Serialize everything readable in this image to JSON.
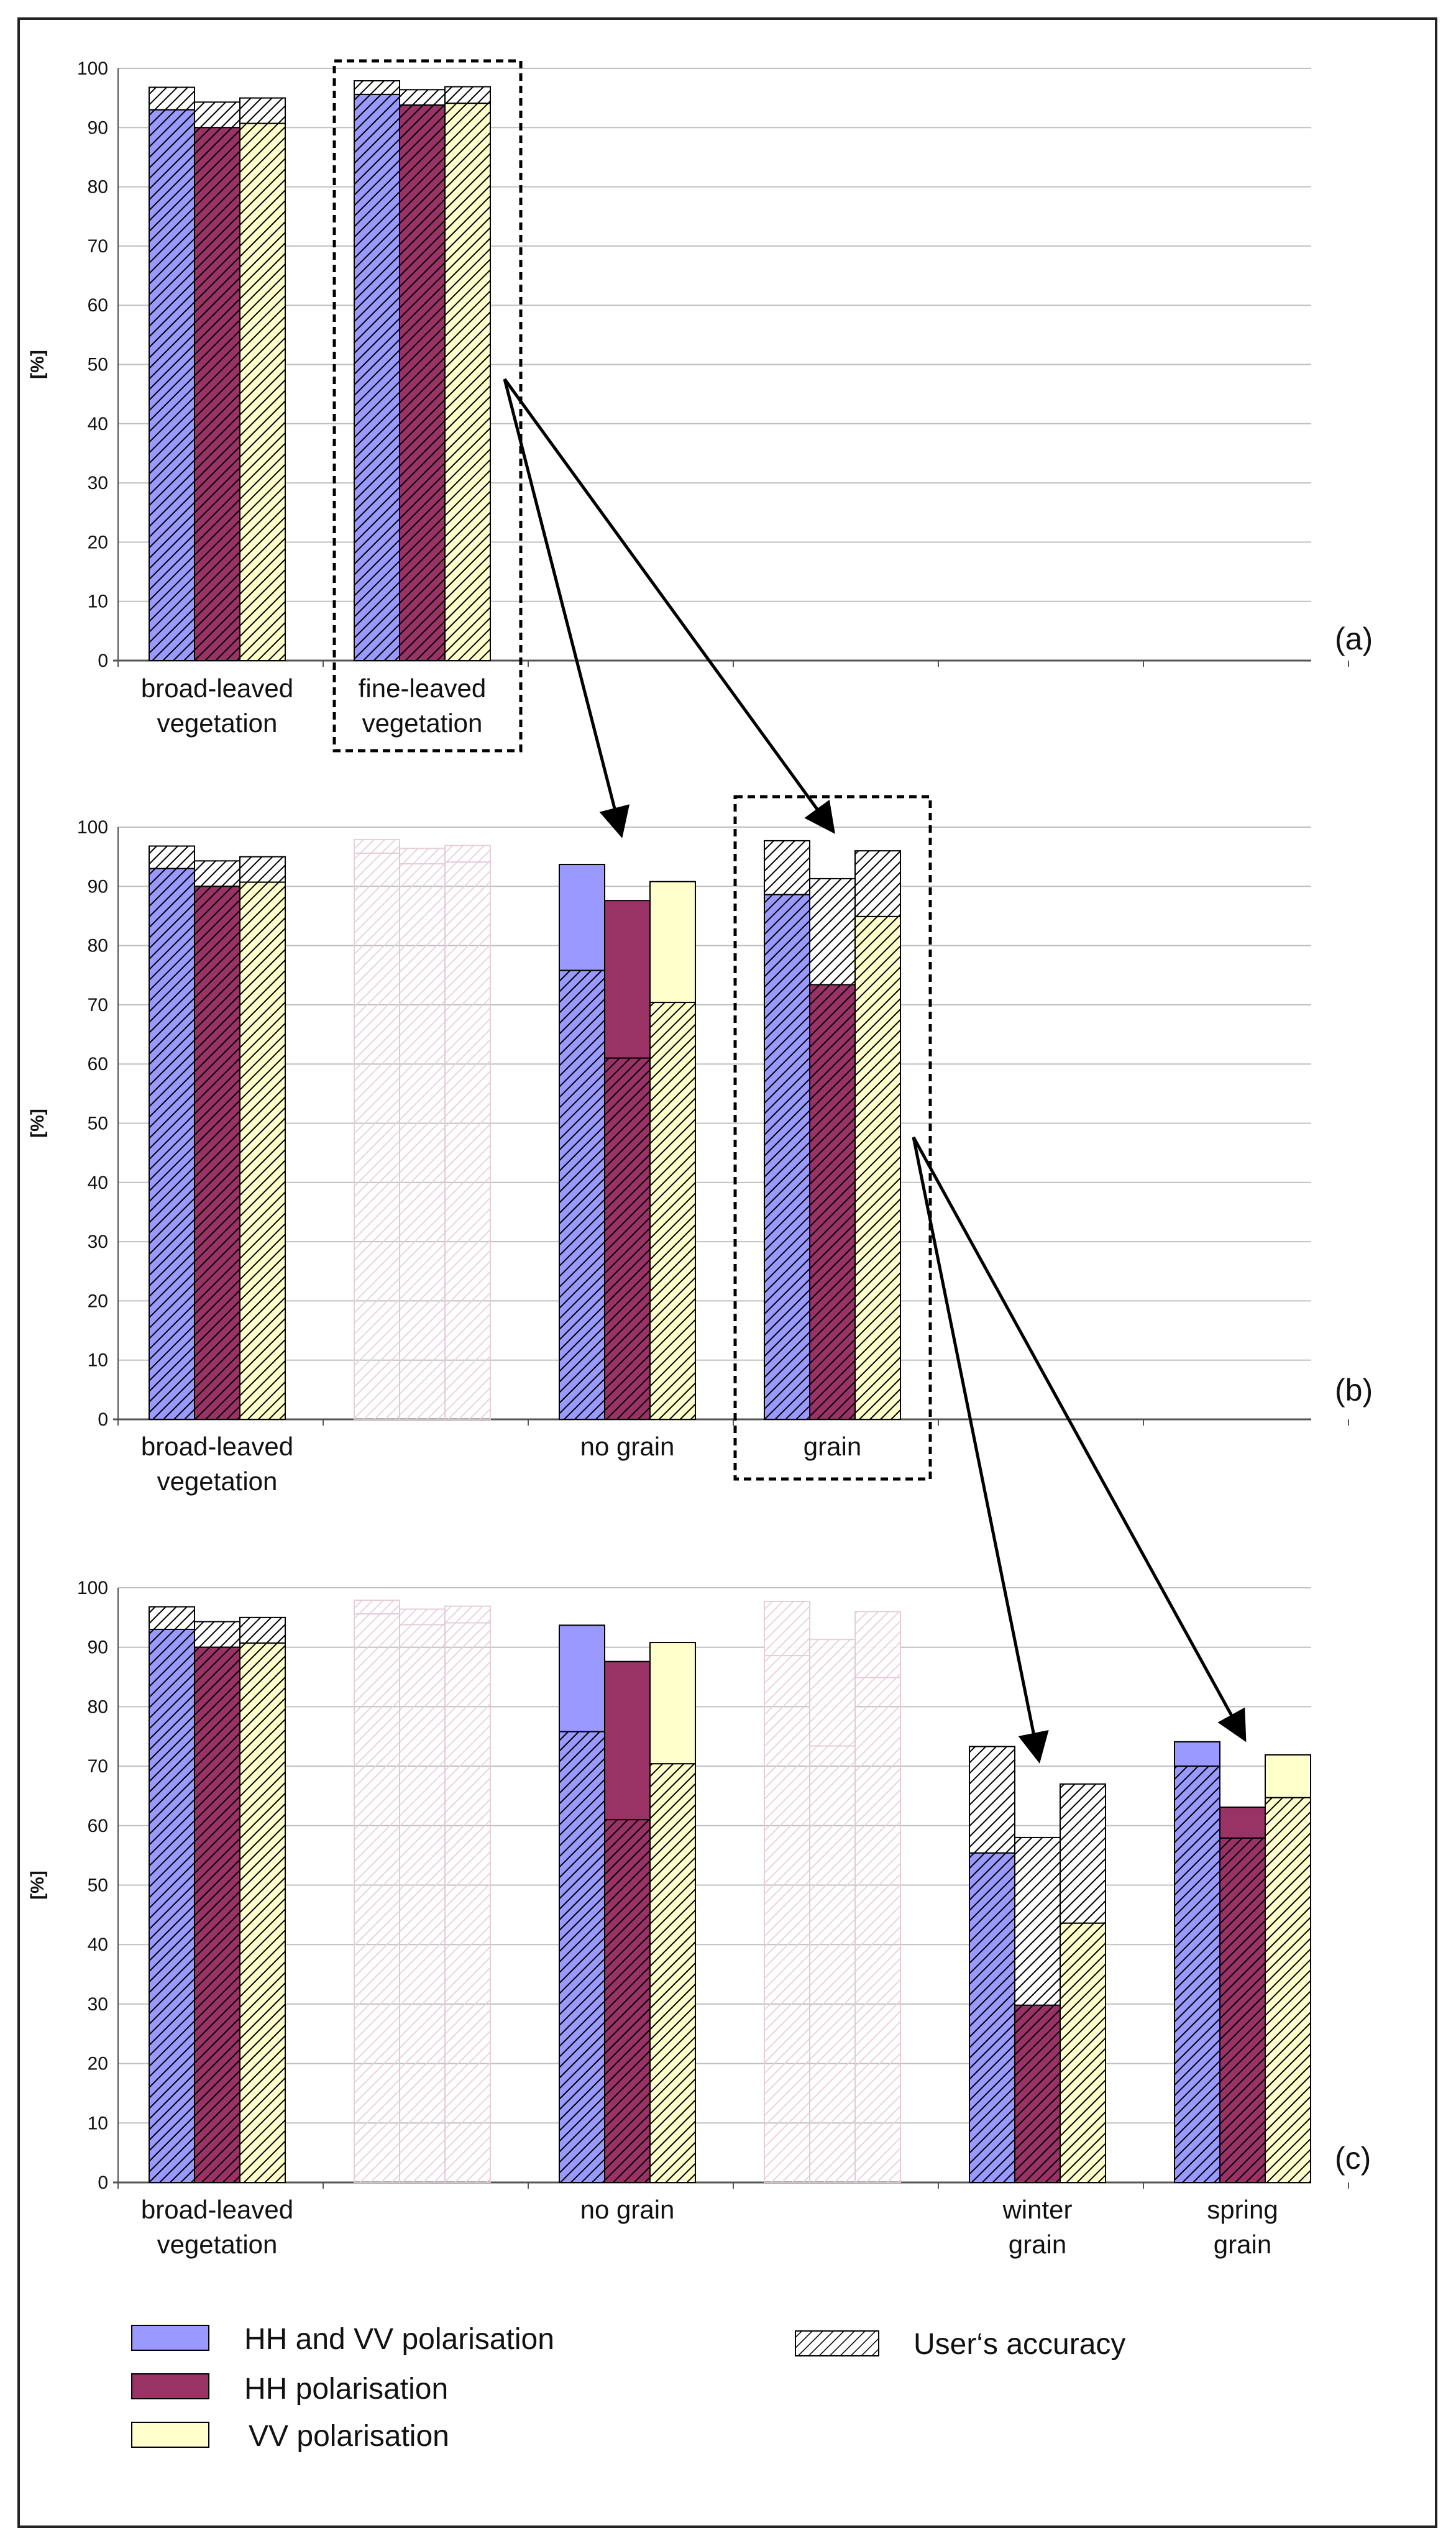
{
  "chart_data": [
    {
      "panel_id": "(a)",
      "type": "bar",
      "ylabel": "[%]",
      "ylim": [
        0,
        100
      ],
      "yticks": [
        "0",
        "10",
        "20",
        "30",
        "40",
        "50",
        "60",
        "70",
        "80",
        "90",
        "100"
      ],
      "groups": [
        {
          "label": [
            "broad-leaved",
            "vegetation"
          ],
          "highlight": false,
          "faded": false,
          "bars": [
            {
              "series": "HH and VV polarisation",
              "value": 93.0,
              "users_accuracy": 96.8
            },
            {
              "series": "HH polarisation",
              "value": 90.0,
              "users_accuracy": 94.3
            },
            {
              "series": "VV polarisation",
              "value": 90.7,
              "users_accuracy": 95.0
            }
          ]
        },
        {
          "label": [
            "fine-leaved",
            "vegetation"
          ],
          "highlight": true,
          "faded": false,
          "bars": [
            {
              "series": "HH and VV polarisation",
              "value": 95.6,
              "users_accuracy": 97.9
            },
            {
              "series": "HH polarisation",
              "value": 93.8,
              "users_accuracy": 96.4
            },
            {
              "series": "VV polarisation",
              "value": 94.1,
              "users_accuracy": 96.9
            }
          ]
        }
      ]
    },
    {
      "panel_id": "(b)",
      "type": "bar",
      "ylabel": "[%]",
      "ylim": [
        0,
        100
      ],
      "yticks": [
        "0",
        "10",
        "20",
        "30",
        "40",
        "50",
        "60",
        "70",
        "80",
        "90",
        "100"
      ],
      "groups": [
        {
          "label": [
            "broad-leaved",
            "vegetation"
          ],
          "highlight": false,
          "faded": false,
          "bars": [
            {
              "series": "HH and VV polarisation",
              "value": 93.0,
              "users_accuracy": 96.8
            },
            {
              "series": "HH polarisation",
              "value": 90.0,
              "users_accuracy": 94.3
            },
            {
              "series": "VV polarisation",
              "value": 90.7,
              "users_accuracy": 95.0
            }
          ]
        },
        {
          "label": [],
          "highlight": false,
          "faded": true,
          "bars": [
            {
              "series": "HH and VV polarisation",
              "value": 95.6,
              "users_accuracy": 97.9
            },
            {
              "series": "HH polarisation",
              "value": 93.8,
              "users_accuracy": 96.4
            },
            {
              "series": "VV polarisation",
              "value": 94.1,
              "users_accuracy": 96.9
            }
          ]
        },
        {
          "label": [
            "no grain"
          ],
          "highlight": false,
          "faded": false,
          "bars": [
            {
              "series": "HH and VV polarisation",
              "value": 93.7,
              "users_accuracy": 75.8
            },
            {
              "series": "HH polarisation",
              "value": 87.6,
              "users_accuracy": 61.0
            },
            {
              "series": "VV polarisation",
              "value": 90.8,
              "users_accuracy": 70.4
            }
          ]
        },
        {
          "label": [
            "grain"
          ],
          "highlight": true,
          "faded": false,
          "bars": [
            {
              "series": "HH and VV polarisation",
              "value": 88.6,
              "users_accuracy": 97.7
            },
            {
              "series": "HH polarisation",
              "value": 73.4,
              "users_accuracy": 91.3
            },
            {
              "series": "VV polarisation",
              "value": 84.9,
              "users_accuracy": 96.0
            }
          ]
        }
      ]
    },
    {
      "panel_id": "(c)",
      "type": "bar",
      "ylabel": "[%]",
      "ylim": [
        0,
        100
      ],
      "yticks": [
        "0",
        "10",
        "20",
        "30",
        "40",
        "50",
        "60",
        "70",
        "80",
        "90",
        "100"
      ],
      "groups": [
        {
          "label": [
            "broad-leaved",
            "vegetation"
          ],
          "highlight": false,
          "faded": false,
          "bars": [
            {
              "series": "HH and VV polarisation",
              "value": 93.0,
              "users_accuracy": 96.8
            },
            {
              "series": "HH polarisation",
              "value": 90.0,
              "users_accuracy": 94.3
            },
            {
              "series": "VV polarisation",
              "value": 90.7,
              "users_accuracy": 95.0
            }
          ]
        },
        {
          "label": [],
          "highlight": false,
          "faded": true,
          "bars": [
            {
              "series": "HH and VV polarisation",
              "value": 95.6,
              "users_accuracy": 97.9
            },
            {
              "series": "HH polarisation",
              "value": 93.8,
              "users_accuracy": 96.4
            },
            {
              "series": "VV polarisation",
              "value": 94.1,
              "users_accuracy": 96.9
            }
          ]
        },
        {
          "label": [
            "no grain"
          ],
          "highlight": false,
          "faded": false,
          "bars": [
            {
              "series": "HH and VV polarisation",
              "value": 93.7,
              "users_accuracy": 75.8
            },
            {
              "series": "HH polarisation",
              "value": 87.6,
              "users_accuracy": 61.0
            },
            {
              "series": "VV polarisation",
              "value": 90.8,
              "users_accuracy": 70.4
            }
          ]
        },
        {
          "label": [],
          "highlight": false,
          "faded": true,
          "bars": [
            {
              "series": "HH and VV polarisation",
              "value": 88.6,
              "users_accuracy": 97.7
            },
            {
              "series": "HH polarisation",
              "value": 73.4,
              "users_accuracy": 91.3
            },
            {
              "series": "VV polarisation",
              "value": 84.9,
              "users_accuracy": 96.0
            }
          ]
        },
        {
          "label": [
            "winter",
            "grain"
          ],
          "highlight": false,
          "faded": false,
          "bars": [
            {
              "series": "HH and VV polarisation",
              "value": 55.4,
              "users_accuracy": 73.3
            },
            {
              "series": "HH polarisation",
              "value": 29.8,
              "users_accuracy": 58.0
            },
            {
              "series": "VV polarisation",
              "value": 43.6,
              "users_accuracy": 67.0
            }
          ]
        },
        {
          "label": [
            "spring",
            "grain"
          ],
          "highlight": false,
          "faded": false,
          "bars": [
            {
              "series": "HH and VV polarisation",
              "value": 74.1,
              "users_accuracy": 70.0
            },
            {
              "series": "HH polarisation",
              "value": 63.1,
              "users_accuracy": 57.9
            },
            {
              "series": "VV polarisation",
              "value": 71.9,
              "users_accuracy": 64.7
            }
          ]
        }
      ]
    }
  ],
  "colors": {
    "HH and VV polarisation": "#9999ff",
    "HH polarisation": "#993366",
    "VV polarisation": "#ffffcc",
    "faded_stroke": "#e3c9d6",
    "grid": "#c0c0c0"
  },
  "legend": {
    "hh_vv": "HH and VV polarisation",
    "hh": "HH polarisation",
    "vv": "VV polarisation",
    "users_accuracy": "User‘s accuracy"
  }
}
